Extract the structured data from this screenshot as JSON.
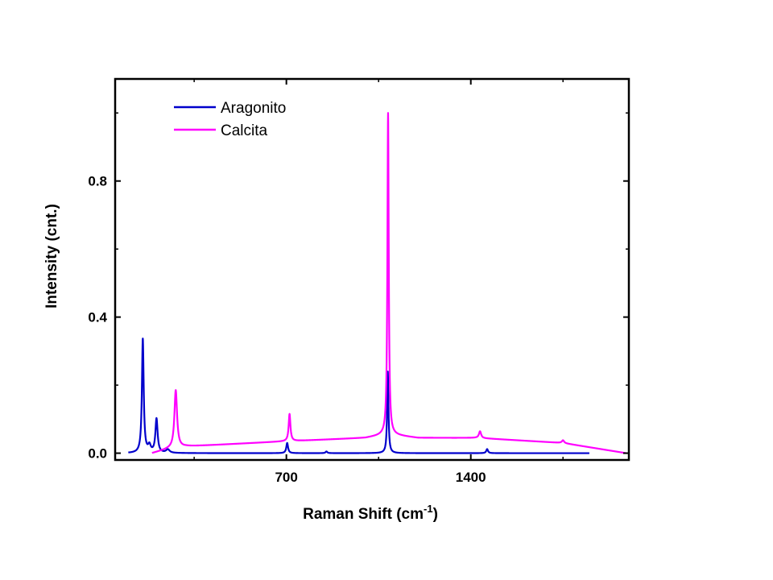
{
  "chart_data": {
    "type": "line",
    "xlabel": "Raman Shift (cm",
    "xlabel_sup": "-1",
    "xlabel_close": ")",
    "ylabel": "Intensity (cnt.)",
    "xlim": [
      50,
      2000
    ],
    "ylim": [
      -0.02,
      1.1
    ],
    "x_ticks": [
      700,
      1400
    ],
    "x_tick_labels": [
      "700",
      "1400"
    ],
    "y_ticks": [
      0.0,
      0.4,
      0.8
    ],
    "y_tick_labels": [
      "0.0",
      "0.4",
      "0.8"
    ],
    "grid": false,
    "legend_position": "top-left",
    "series": [
      {
        "name": "Aragonito",
        "color": "#0000cc",
        "baseline": [
          [
            100,
            0.0
          ],
          [
            1850,
            0.0
          ]
        ],
        "peaks": [
          {
            "x": 155,
            "h": 0.335,
            "w": 4
          },
          {
            "x": 180,
            "h": 0.02,
            "w": 6
          },
          {
            "x": 207,
            "h": 0.1,
            "w": 5
          },
          {
            "x": 250,
            "h": 0.01,
            "w": 8
          },
          {
            "x": 703,
            "h": 0.03,
            "w": 4
          },
          {
            "x": 852,
            "h": 0.005,
            "w": 4
          },
          {
            "x": 1085,
            "h": 0.24,
            "w": 3
          },
          {
            "x": 1462,
            "h": 0.012,
            "w": 4
          }
        ]
      },
      {
        "name": "Calcita",
        "color": "#ff00ff",
        "baseline": [
          [
            190,
            0.0
          ],
          [
            250,
            0.012
          ],
          [
            320,
            0.02
          ],
          [
            700,
            0.035
          ],
          [
            1000,
            0.045
          ],
          [
            1085,
            0.055
          ],
          [
            1200,
            0.045
          ],
          [
            1420,
            0.045
          ],
          [
            1750,
            0.03
          ],
          [
            1990,
            0.0
          ]
        ],
        "peaks": [
          {
            "x": 280,
            "h": 0.17,
            "w": 6
          },
          {
            "x": 712,
            "h": 0.08,
            "w": 4
          },
          {
            "x": 1086,
            "h": 0.945,
            "w": 3
          },
          {
            "x": 1435,
            "h": 0.02,
            "w": 5
          },
          {
            "x": 1750,
            "h": 0.008,
            "w": 5
          }
        ]
      }
    ]
  }
}
